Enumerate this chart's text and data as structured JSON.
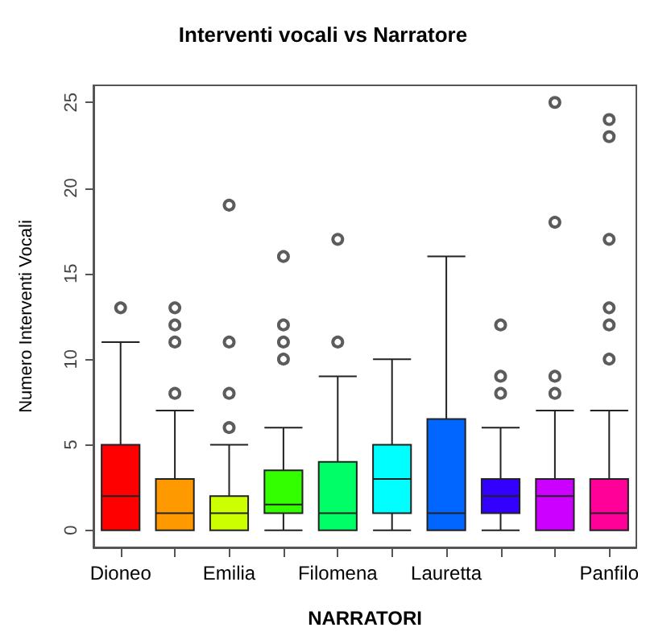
{
  "chart_data": {
    "type": "box",
    "title": "Interventi vocali vs Narratore",
    "xlabel": "NARRATORI",
    "ylabel": "Numero Interventi Vocali",
    "categories": [
      "Dioneo",
      null,
      "Emilia",
      null,
      "Filomena",
      null,
      "Lauretta",
      null,
      null,
      "Panfilo"
    ],
    "colors": [
      "#ff0000",
      "#ff9900",
      "#ccff00",
      "#33ff00",
      "#00ff66",
      "#00ffff",
      "#0066ff",
      "#3300ff",
      "#cc00ff",
      "#ff0099"
    ],
    "boxes": [
      {
        "low": 0,
        "q1": 0,
        "median": 2,
        "q3": 5,
        "high": 11,
        "outliers": [
          13
        ]
      },
      {
        "low": 0,
        "q1": 0,
        "median": 1,
        "q3": 3,
        "high": 7,
        "outliers": [
          8,
          11,
          12,
          13
        ]
      },
      {
        "low": 0,
        "q1": 0,
        "median": 1,
        "q3": 2,
        "high": 5,
        "outliers": [
          6,
          8,
          11,
          19
        ]
      },
      {
        "low": 0,
        "q1": 1,
        "median": 1.5,
        "q3": 3.5,
        "high": 6,
        "outliers": [
          10,
          11,
          12,
          16
        ]
      },
      {
        "low": 0,
        "q1": 0,
        "median": 1,
        "q3": 4,
        "high": 9,
        "outliers": [
          11,
          17
        ]
      },
      {
        "low": 0,
        "q1": 1,
        "median": 3,
        "q3": 5,
        "high": 10
      },
      {
        "low": 0,
        "q1": 0,
        "median": 1,
        "q3": 6.5,
        "high": 16
      },
      {
        "low": 0,
        "q1": 1,
        "median": 2,
        "q3": 3,
        "high": 6,
        "outliers": [
          8,
          9,
          12
        ]
      },
      {
        "low": 0,
        "q1": 0,
        "median": 2,
        "q3": 3,
        "high": 7,
        "outliers": [
          8,
          9,
          18,
          25
        ]
      },
      {
        "low": 0,
        "q1": 0,
        "median": 1,
        "q3": 3,
        "high": 7,
        "outliers": [
          10,
          12,
          13,
          17,
          23,
          24
        ]
      }
    ],
    "ylim": [
      -1,
      26
    ],
    "yticks": [
      0,
      5,
      10,
      15,
      20,
      25
    ],
    "grid": false,
    "marker": "circle"
  }
}
